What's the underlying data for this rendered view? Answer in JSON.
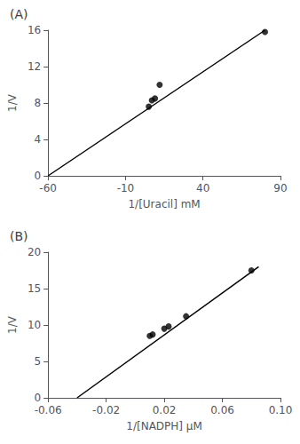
{
  "chart_data": [
    {
      "type": "scatter",
      "title": "(A)",
      "xlabel": "1/[Uracil] mM",
      "ylabel": "1/V",
      "series": [
        {
          "type": "line",
          "x": [
            -60,
            80
          ],
          "values": [
            0.0,
            16.0
          ],
          "color": "black"
        },
        {
          "type": "scatter",
          "x": [
            5,
            7,
            9,
            12,
            80
          ],
          "values": [
            7.6,
            8.3,
            8.5,
            10.0,
            15.8
          ],
          "color": "black"
        }
      ],
      "xlim": [
        -60,
        90
      ],
      "ylim": [
        0,
        16
      ],
      "xticks": [
        -60,
        -10,
        40,
        90
      ],
      "yticks": [
        0,
        4,
        8,
        12,
        16
      ],
      "grid": false
    },
    {
      "type": "scatter",
      "title": "(B)",
      "xlabel": "1/[NADPH] μM",
      "ylabel": "1/V",
      "series": [
        {
          "type": "line",
          "x": [
            -0.04,
            0.085
          ],
          "values": [
            0.0,
            18.0
          ],
          "color": "black"
        },
        {
          "type": "scatter",
          "x": [
            0.01,
            0.012,
            0.02,
            0.023,
            0.035,
            0.08
          ],
          "values": [
            8.5,
            8.7,
            9.5,
            9.8,
            11.2,
            17.5
          ],
          "color": "black"
        }
      ],
      "xlim": [
        -0.06,
        0.1
      ],
      "ylim": [
        0,
        20
      ],
      "xticks": [
        -0.06,
        -0.02,
        0.02,
        0.06,
        {
          "value": 0.1,
          "label": "0.10"
        }
      ],
      "yticks": [
        0,
        5,
        10,
        15,
        20
      ],
      "grid": false
    }
  ]
}
